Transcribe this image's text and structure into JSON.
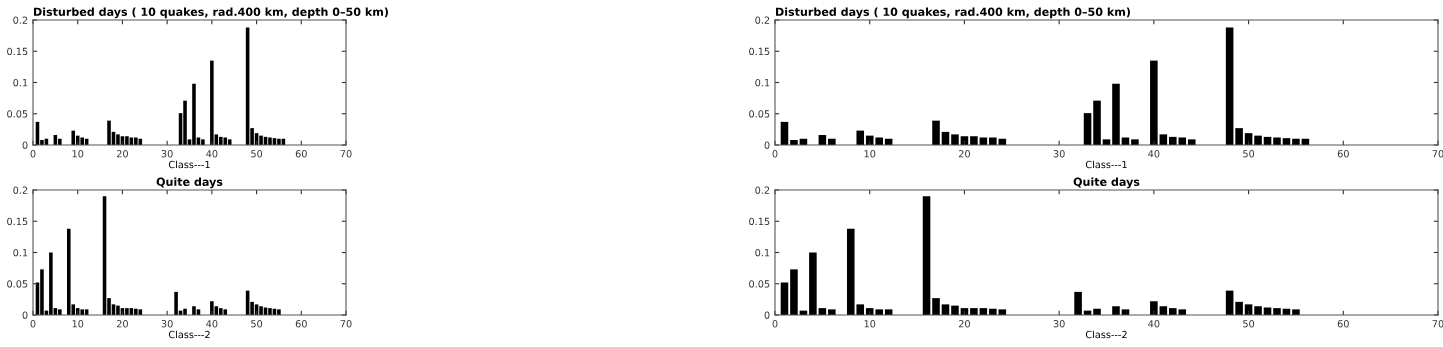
{
  "chart_data": [
    {
      "type": "bar",
      "title": "Disturbed days ( 10 quakes, rad.400 km, depth 0–50 km)",
      "xlabel": "Class---1",
      "color": "#000000",
      "x": [
        1,
        2,
        3,
        5,
        6,
        9,
        10,
        11,
        12,
        17,
        18,
        19,
        20,
        21,
        22,
        23,
        24,
        33,
        34,
        35,
        36,
        37,
        38,
        40,
        41,
        42,
        43,
        44,
        48,
        49,
        50,
        51,
        52,
        53,
        54,
        55,
        56
      ],
      "values": [
        0.037,
        0.008,
        0.01,
        0.016,
        0.01,
        0.023,
        0.015,
        0.012,
        0.01,
        0.039,
        0.021,
        0.017,
        0.014,
        0.014,
        0.012,
        0.012,
        0.01,
        0.051,
        0.071,
        0.009,
        0.098,
        0.012,
        0.009,
        0.135,
        0.017,
        0.013,
        0.012,
        0.009,
        0.188,
        0.027,
        0.019,
        0.015,
        0.013,
        0.012,
        0.011,
        0.01,
        0.01
      ],
      "xlim": [
        0,
        70
      ],
      "xticks": [
        0,
        10,
        20,
        30,
        40,
        50,
        60,
        70
      ],
      "ylim": [
        0,
        0.2
      ],
      "yticks": [
        0,
        0.05,
        0.1,
        0.15,
        0.2
      ],
      "grid": false,
      "legend": false
    },
    {
      "type": "bar",
      "title": "Disturbed days ( 10 quakes, rad.400 km, depth 0–50 km)",
      "xlabel": "Class---1",
      "color": "#000000",
      "x": [
        1,
        2,
        3,
        5,
        6,
        9,
        10,
        11,
        12,
        17,
        18,
        19,
        20,
        21,
        22,
        23,
        24,
        33,
        34,
        35,
        36,
        37,
        38,
        40,
        41,
        42,
        43,
        44,
        48,
        49,
        50,
        51,
        52,
        53,
        54,
        55,
        56
      ],
      "values": [
        0.037,
        0.008,
        0.01,
        0.016,
        0.01,
        0.023,
        0.015,
        0.012,
        0.01,
        0.039,
        0.021,
        0.017,
        0.014,
        0.014,
        0.012,
        0.012,
        0.01,
        0.051,
        0.071,
        0.009,
        0.098,
        0.012,
        0.009,
        0.135,
        0.017,
        0.013,
        0.012,
        0.009,
        0.188,
        0.027,
        0.019,
        0.015,
        0.013,
        0.012,
        0.011,
        0.01,
        0.01
      ],
      "xlim": [
        0,
        70
      ],
      "xticks": [
        0,
        10,
        20,
        30,
        40,
        50,
        60,
        70
      ],
      "ylim": [
        0,
        0.2
      ],
      "yticks": [
        0,
        0.05,
        0.1,
        0.15,
        0.2
      ],
      "grid": false,
      "legend": false
    },
    {
      "type": "bar",
      "title": "Quite days",
      "xlabel": "Class---2",
      "color": "#000000",
      "x": [
        1,
        2,
        3,
        4,
        5,
        6,
        8,
        9,
        10,
        11,
        12,
        16,
        17,
        18,
        19,
        20,
        21,
        22,
        23,
        24,
        32,
        33,
        34,
        36,
        37,
        40,
        41,
        42,
        43,
        48,
        49,
        50,
        51,
        52,
        53,
        54,
        55
      ],
      "values": [
        0.052,
        0.073,
        0.007,
        0.1,
        0.011,
        0.009,
        0.138,
        0.017,
        0.011,
        0.009,
        0.009,
        0.19,
        0.027,
        0.017,
        0.015,
        0.011,
        0.011,
        0.011,
        0.01,
        0.009,
        0.037,
        0.007,
        0.01,
        0.014,
        0.009,
        0.022,
        0.014,
        0.011,
        0.009,
        0.039,
        0.021,
        0.017,
        0.014,
        0.012,
        0.011,
        0.01,
        0.009
      ],
      "xlim": [
        0,
        70
      ],
      "xticks": [
        0,
        10,
        20,
        30,
        40,
        50,
        60,
        70
      ],
      "ylim": [
        0,
        0.2
      ],
      "yticks": [
        0,
        0.05,
        0.1,
        0.15,
        0.2
      ],
      "grid": false,
      "legend": false
    },
    {
      "type": "bar",
      "title": "Quite days",
      "xlabel": "Class---2",
      "color": "#000000",
      "x": [
        1,
        2,
        3,
        4,
        5,
        6,
        8,
        9,
        10,
        11,
        12,
        16,
        17,
        18,
        19,
        20,
        21,
        22,
        23,
        24,
        32,
        33,
        34,
        36,
        37,
        40,
        41,
        42,
        43,
        48,
        49,
        50,
        51,
        52,
        53,
        54,
        55
      ],
      "values": [
        0.052,
        0.073,
        0.007,
        0.1,
        0.011,
        0.009,
        0.138,
        0.017,
        0.011,
        0.009,
        0.009,
        0.19,
        0.027,
        0.017,
        0.015,
        0.011,
        0.011,
        0.011,
        0.01,
        0.009,
        0.037,
        0.007,
        0.01,
        0.014,
        0.009,
        0.022,
        0.014,
        0.011,
        0.009,
        0.039,
        0.021,
        0.017,
        0.014,
        0.012,
        0.011,
        0.01,
        0.009
      ],
      "xlim": [
        0,
        70
      ],
      "xticks": [
        0,
        10,
        20,
        30,
        40,
        50,
        60,
        70
      ],
      "ylim": [
        0,
        0.2
      ],
      "yticks": [
        0,
        0.05,
        0.1,
        0.15,
        0.2
      ],
      "grid": false,
      "legend": false
    }
  ]
}
